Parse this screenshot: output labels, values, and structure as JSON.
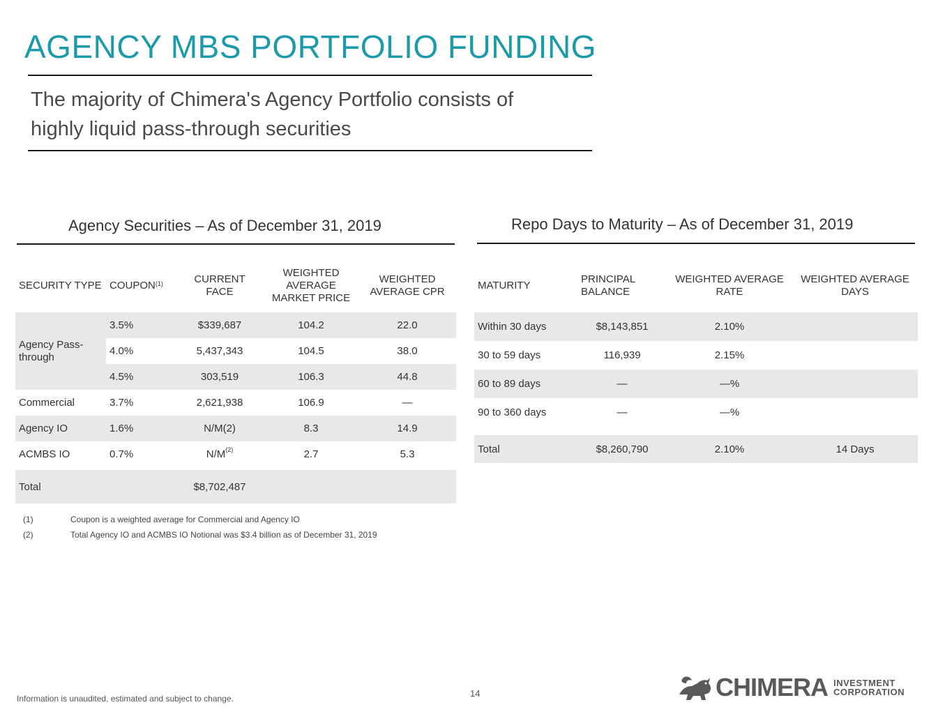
{
  "header": {
    "title": "AGENCY MBS PORTFOLIO FUNDING",
    "subtitle_line1": "The majority of Chimera's Agency Portfolio consists of",
    "subtitle_line2": "highly liquid pass-through securities"
  },
  "agency_securities": {
    "heading": "Agency Securities – As of December 31, 2019",
    "columns": {
      "security_type": "SECURITY TYPE",
      "coupon": "COUPON",
      "coupon_sup": "(1)",
      "current_face_1": "CURRENT",
      "current_face_2": "FACE",
      "wamp_1": "WEIGHTED",
      "wamp_2": "AVERAGE",
      "wamp_3": "MARKET PRICE",
      "wacpr_1": "WEIGHTED",
      "wacpr_2": "AVERAGE CPR"
    },
    "passthrough_label_1": "Agency Pass-",
    "passthrough_label_2": "through",
    "rows": [
      {
        "coupon": "3.5%",
        "face": "$339,687",
        "price": "104.2",
        "cpr": "22.0"
      },
      {
        "coupon": "4.0%",
        "face": "5,437,343",
        "price": "104.5",
        "cpr": "38.0"
      },
      {
        "coupon": "4.5%",
        "face": "303,519",
        "price": "106.3",
        "cpr": "44.8"
      },
      {
        "type": "Commercial",
        "coupon": "3.7%",
        "face": "2,621,938",
        "price": "106.9",
        "cpr": "—"
      },
      {
        "type": "Agency IO",
        "coupon": "1.6%",
        "face": "N/M(2)",
        "price": "8.3",
        "cpr": "14.9"
      },
      {
        "type": "ACMBS IO",
        "coupon": "0.7%",
        "face": "N/M",
        "face_sup": "(2)",
        "price": "2.7",
        "cpr": "5.3"
      }
    ],
    "total": {
      "label": "Total",
      "face": "$8,702,487"
    },
    "notes": [
      {
        "num": "(1)",
        "text": "Coupon is a weighted average for Commercial and Agency IO"
      },
      {
        "num": "(2)",
        "text": "Total Agency IO and ACMBS IO Notional was $3.4 billion as of December 31, 2019"
      }
    ]
  },
  "repo": {
    "heading": "Repo Days to Maturity – As of December 31, 2019",
    "columns": {
      "maturity": "MATURITY",
      "principal_1": "PRINCIPAL",
      "principal_2": "BALANCE",
      "rate_1": "WEIGHTED AVERAGE",
      "rate_2": "RATE",
      "days_1": "WEIGHTED AVERAGE",
      "days_2": "DAYS"
    },
    "rows": [
      {
        "maturity": "Within 30 days",
        "balance": "$8,143,851",
        "rate": "2.10%",
        "days": ""
      },
      {
        "maturity": "30 to 59 days",
        "balance": "116,939",
        "rate": "2.15%",
        "days": ""
      },
      {
        "maturity": "60 to 89 days",
        "balance": "—",
        "rate": "—%",
        "days": ""
      },
      {
        "maturity": "90 to 360 days",
        "balance": "—",
        "rate": "—%",
        "days": ""
      }
    ],
    "total": {
      "maturity": "Total",
      "balance": "$8,260,790",
      "rate": "2.10%",
      "days": "14 Days"
    }
  },
  "footer": {
    "disclaimer": "Information is unaudited, estimated and subject to change.",
    "page_number": "14"
  },
  "logo": {
    "word": "CHIMERA",
    "sub_1": "INVESTMENT",
    "sub_2": "CORPORATION",
    "icon": "chimera-creature-icon"
  }
}
